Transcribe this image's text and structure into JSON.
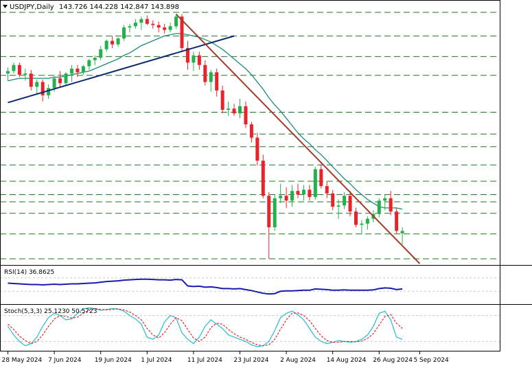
{
  "header": {
    "symbol_timeframe": "USDJPY,Daily",
    "ohlc": "143.726 144.228 142.847 143.898"
  },
  "colors": {
    "bull": "#22b14c",
    "bear": "#e8232a",
    "grid": "#1e7a1e",
    "ma": "#1b8a7a",
    "upTrend": "#0b2a6e",
    "downTrend": "#a33a2a",
    "rsi": "#1919b4",
    "stochK": "#22bcd4",
    "stochD": "#e8232a",
    "labelBg": "#1e8a3a"
  },
  "price_levels": [
    "161.950",
    "160.000",
    "158.300",
    "156.750",
    "153.700",
    "151.900",
    "150.850",
    "149.350",
    "148.000",
    "146.900",
    "146.300",
    "145.350",
    "143.650",
    "141.600"
  ],
  "price_ticks": [
    "156.405",
    "154.535",
    "152.665",
    "148.870",
    "145.075",
    "143.205",
    "141.335"
  ],
  "rsi_panel": {
    "label": "RSI(14) 36.8625",
    "ticks": [
      "100",
      "70",
      "30",
      "0"
    ],
    "levels": [
      70,
      30
    ]
  },
  "stoch_panel": {
    "label": "Stoch(5,3,3) 25.1230 50.5723",
    "ticks": [
      "100",
      "80",
      "20",
      "0"
    ],
    "levels": [
      80,
      20
    ]
  },
  "chart_data": [
    {
      "type": "candlestick",
      "title": "USDJPY,Daily",
      "ylim": [
        141.2,
        162.8
      ],
      "x_labels": [
        {
          "i": 0,
          "label": "28 May 2024"
        },
        {
          "i": 8,
          "label": "7 Jun 2024"
        },
        {
          "i": 16,
          "label": "19 Jun 2024"
        },
        {
          "i": 24,
          "label": "1 Jul 2024"
        },
        {
          "i": 32,
          "label": "11 Jul 2024"
        },
        {
          "i": 40,
          "label": "23 Jul 2024"
        },
        {
          "i": 48,
          "label": "2 Aug 2024"
        },
        {
          "i": 56,
          "label": "14 Aug 2024"
        },
        {
          "i": 64,
          "label": "26 Aug 2024"
        },
        {
          "i": 71,
          "label": "5 Sep 2024"
        }
      ],
      "candles": [
        [
          156.9,
          157.4,
          156.3,
          157.1
        ],
        [
          157.1,
          157.8,
          156.9,
          157.6
        ],
        [
          157.6,
          157.8,
          156.6,
          156.8
        ],
        [
          156.8,
          157.3,
          156.3,
          156.9
        ],
        [
          156.9,
          157.2,
          155.5,
          155.8
        ],
        [
          155.8,
          156.4,
          155.2,
          156.2
        ],
        [
          156.2,
          156.4,
          154.6,
          155.1
        ],
        [
          155.1,
          156.0,
          154.8,
          155.7
        ],
        [
          155.7,
          156.7,
          155.4,
          156.5
        ],
        [
          156.5,
          157.1,
          155.8,
          156.1
        ],
        [
          156.1,
          157.0,
          155.9,
          156.9
        ],
        [
          156.9,
          157.6,
          156.2,
          157.3
        ],
        [
          157.3,
          157.6,
          156.6,
          157.0
        ],
        [
          157.0,
          157.6,
          156.8,
          157.5
        ],
        [
          157.5,
          158.1,
          157.2,
          158.0
        ],
        [
          158.0,
          158.4,
          157.6,
          158.2
        ],
        [
          158.2,
          159.2,
          158.0,
          158.9
        ],
        [
          158.9,
          159.7,
          158.7,
          159.6
        ],
        [
          159.6,
          160.0,
          159.0,
          159.3
        ],
        [
          159.3,
          159.9,
          159.1,
          159.8
        ],
        [
          159.8,
          160.9,
          159.6,
          160.7
        ],
        [
          160.7,
          161.0,
          160.3,
          160.8
        ],
        [
          160.8,
          161.4,
          160.6,
          161.1
        ],
        [
          161.1,
          161.6,
          160.5,
          161.4
        ],
        [
          161.4,
          161.7,
          160.9,
          161.0
        ],
        [
          161.0,
          161.3,
          160.6,
          160.9
        ],
        [
          160.9,
          161.2,
          160.3,
          160.7
        ],
        [
          160.7,
          161.0,
          160.2,
          160.5
        ],
        [
          160.5,
          161.1,
          160.3,
          160.8
        ],
        [
          160.8,
          161.8,
          160.6,
          161.6
        ],
        [
          161.6,
          161.8,
          158.8,
          159.0
        ],
        [
          159.0,
          159.6,
          157.2,
          157.8
        ],
        [
          157.8,
          158.7,
          157.1,
          158.4
        ],
        [
          158.4,
          158.7,
          157.2,
          157.6
        ],
        [
          157.6,
          158.0,
          155.9,
          156.2
        ],
        [
          156.2,
          157.2,
          155.4,
          157.0
        ],
        [
          157.0,
          157.3,
          155.0,
          155.5
        ],
        [
          155.5,
          155.9,
          153.6,
          153.9
        ],
        [
          153.9,
          154.6,
          153.4,
          154.0
        ],
        [
          154.0,
          154.4,
          153.4,
          153.6
        ],
        [
          153.6,
          154.8,
          153.2,
          154.2
        ],
        [
          154.2,
          154.6,
          152.4,
          152.7
        ],
        [
          152.7,
          152.9,
          151.2,
          151.6
        ],
        [
          151.6,
          152.0,
          149.3,
          149.7
        ],
        [
          149.7,
          150.2,
          146.6,
          146.8
        ],
        [
          146.8,
          147.1,
          141.6,
          144.2
        ],
        [
          144.2,
          146.9,
          143.9,
          146.6
        ],
        [
          146.6,
          147.8,
          146.2,
          146.8
        ],
        [
          146.8,
          147.5,
          145.8,
          146.4
        ],
        [
          146.4,
          147.7,
          145.9,
          147.2
        ],
        [
          147.2,
          147.8,
          146.6,
          146.9
        ],
        [
          146.9,
          147.7,
          146.4,
          147.3
        ],
        [
          147.3,
          147.7,
          146.4,
          146.7
        ],
        [
          146.7,
          149.2,
          146.5,
          149.0
        ],
        [
          149.0,
          149.4,
          147.4,
          147.6
        ],
        [
          147.6,
          148.0,
          146.6,
          147.0
        ],
        [
          147.0,
          147.3,
          145.6,
          145.9
        ],
        [
          145.9,
          146.5,
          144.9,
          146.0
        ],
        [
          146.0,
          147.1,
          145.7,
          146.8
        ],
        [
          146.8,
          147.2,
          145.1,
          145.5
        ],
        [
          145.5,
          145.8,
          144.2,
          144.4
        ],
        [
          144.4,
          144.8,
          143.6,
          144.5
        ],
        [
          144.5,
          145.1,
          144.0,
          144.9
        ],
        [
          144.9,
          145.6,
          144.6,
          145.3
        ],
        [
          145.3,
          146.6,
          145.0,
          146.4
        ],
        [
          146.4,
          146.9,
          145.6,
          146.6
        ],
        [
          146.6,
          147.2,
          145.2,
          145.5
        ],
        [
          145.5,
          145.8,
          143.7,
          143.9
        ],
        [
          143.7,
          144.2,
          142.8,
          143.9
        ]
      ],
      "ma": [
        156.3,
        156.4,
        156.5,
        156.5,
        156.5,
        156.5,
        156.5,
        156.5,
        156.6,
        156.6,
        156.7,
        156.8,
        156.9,
        157.0,
        157.1,
        157.3,
        157.5,
        157.7,
        157.9,
        158.1,
        158.4,
        158.6,
        158.9,
        159.2,
        159.4,
        159.6,
        159.8,
        160.0,
        160.1,
        160.2,
        160.2,
        160.1,
        160.0,
        159.9,
        159.7,
        159.5,
        159.2,
        158.9,
        158.5,
        158.1,
        157.7,
        157.3,
        156.8,
        156.2,
        155.6,
        154.9,
        154.3,
        153.8,
        153.2,
        152.6,
        152.0,
        151.5,
        151.1,
        150.6,
        150.2,
        149.7,
        149.2,
        148.7,
        148.2,
        147.8,
        147.3,
        146.9,
        146.5,
        146.2,
        145.9,
        145.8,
        145.8,
        145.8,
        145.7
      ],
      "trend_lines": [
        {
          "name": "rising support",
          "from": {
            "i": 0,
            "price": 154.5
          },
          "to": {
            "i": 39,
            "price": 160.0
          }
        },
        {
          "name": "falling resistance",
          "from": {
            "i": 29,
            "price": 161.8
          },
          "to": {
            "i": 71,
            "price": 141.2
          }
        }
      ]
    },
    {
      "type": "line",
      "title": "RSI(14) 36.8625",
      "ylim": [
        0,
        100
      ],
      "series": [
        {
          "values": [
            54,
            53,
            52,
            51,
            50,
            50,
            49,
            50,
            51,
            50,
            51,
            52,
            52,
            53,
            54,
            55,
            57,
            59,
            60,
            61,
            63,
            64,
            65,
            66,
            66,
            65,
            64,
            64,
            63,
            65,
            64,
            46,
            44,
            45,
            42,
            43,
            41,
            38,
            38,
            37,
            38,
            35,
            32,
            28,
            24,
            22,
            23,
            30,
            31,
            31,
            32,
            33,
            33,
            37,
            36,
            35,
            33,
            33,
            34,
            33,
            33,
            33,
            33,
            34,
            38,
            40,
            39,
            35,
            37
          ]
        }
      ]
    },
    {
      "type": "line",
      "title": "Stoch(5,3,3) 25.1230 50.5723",
      "ylim": [
        0,
        100
      ],
      "series": [
        {
          "values": [
            55,
            35,
            20,
            10,
            15,
            30,
            55,
            75,
            85,
            80,
            70,
            72,
            85,
            95,
            98,
            96,
            92,
            94,
            96,
            95,
            90,
            80,
            72,
            60,
            30,
            25,
            35,
            65,
            80,
            75,
            40,
            25,
            15,
            30,
            55,
            70,
            60,
            50,
            35,
            30,
            25,
            20,
            12,
            8,
            10,
            20,
            45,
            75,
            85,
            90,
            82,
            70,
            50,
            30,
            20,
            15,
            18,
            22,
            20,
            18,
            20,
            25,
            35,
            55,
            85,
            90,
            70,
            30,
            25
          ]
        },
        {
          "values": [
            60,
            48,
            32,
            22,
            15,
            20,
            35,
            55,
            72,
            80,
            78,
            74,
            76,
            85,
            92,
            96,
            94,
            93,
            94,
            95,
            93,
            88,
            80,
            70,
            50,
            35,
            28,
            40,
            60,
            75,
            68,
            48,
            28,
            20,
            30,
            52,
            62,
            60,
            48,
            38,
            30,
            25,
            18,
            12,
            10,
            12,
            25,
            48,
            70,
            85,
            86,
            80,
            68,
            50,
            33,
            22,
            18,
            18,
            20,
            20,
            19,
            21,
            27,
            38,
            58,
            78,
            82,
            62,
            50
          ]
        }
      ]
    }
  ]
}
